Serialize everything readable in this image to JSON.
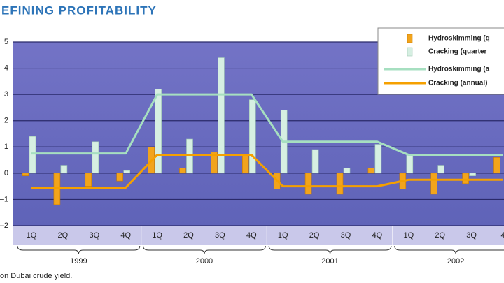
{
  "chart_data": {
    "type": "bar",
    "title": "EFINING PROFITABILITY",
    "footnote": "on Dubai crude yield.",
    "categories": [
      "1Q",
      "2Q",
      "3Q",
      "4Q",
      "1Q",
      "2Q",
      "3Q",
      "4Q",
      "1Q",
      "2Q",
      "3Q",
      "4Q",
      "1Q",
      "2Q",
      "3Q",
      "4"
    ],
    "years": [
      "1999",
      "2000",
      "2001",
      "2002"
    ],
    "ylim": [
      -2,
      5
    ],
    "yticks": [
      {
        "value": -2,
        "label": "–2"
      },
      {
        "value": -1,
        "label": "–1"
      },
      0,
      1,
      2,
      3,
      4,
      5
    ],
    "grid": true,
    "legend": "upper right",
    "series": [
      {
        "name": "Hydroskimming (q",
        "type": "bar",
        "color": "#f2a41c",
        "values": [
          -0.1,
          -1.2,
          -0.5,
          -0.3,
          1.0,
          0.2,
          0.8,
          0.7,
          -0.6,
          -0.8,
          -0.8,
          0.2,
          -0.6,
          -0.8,
          -0.4,
          0.6
        ]
      },
      {
        "name": "Cracking (quarter",
        "type": "bar",
        "color": "#d6efe2",
        "values": [
          1.4,
          0.3,
          1.2,
          0.1,
          3.2,
          1.3,
          4.4,
          2.8,
          2.4,
          0.9,
          0.2,
          1.1,
          0.7,
          0.3,
          -0.1,
          null
        ]
      },
      {
        "name": "Hydroskimming (a",
        "type": "line",
        "color": "#a6dfc0",
        "values": [
          0.75,
          0.75,
          0.75,
          0.75,
          3.0,
          3.0,
          3.0,
          3.0,
          1.2,
          1.2,
          1.2,
          1.2,
          0.7,
          0.7,
          0.7,
          0.7
        ]
      },
      {
        "name": "Cracking (annual)",
        "type": "line",
        "color": "#f5a000",
        "values": [
          -0.55,
          -0.55,
          -0.55,
          -0.55,
          0.7,
          0.7,
          0.7,
          0.7,
          -0.5,
          -0.5,
          -0.5,
          -0.5,
          -0.25,
          -0.25,
          -0.25,
          -0.25
        ]
      }
    ]
  }
}
